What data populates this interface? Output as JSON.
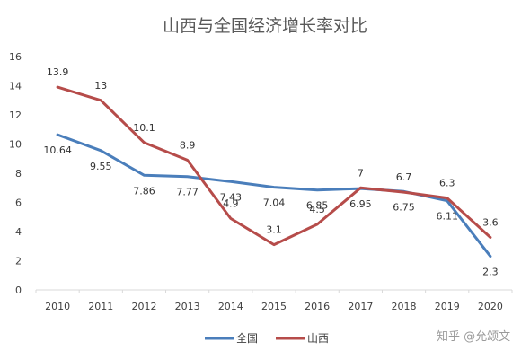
{
  "chart_data": {
    "type": "line",
    "title": "山西与全国经济增长率对比",
    "xlabel": "",
    "ylabel": "",
    "ylim": [
      0,
      16
    ],
    "yticks": [
      0,
      2,
      4,
      6,
      8,
      10,
      12,
      14,
      16
    ],
    "categories": [
      "2010",
      "2011",
      "2012",
      "2013",
      "2014",
      "2015",
      "2016",
      "2017",
      "2018",
      "2019",
      "2020"
    ],
    "series": [
      {
        "name": "全国",
        "color": "#4a7ebb",
        "values": [
          10.64,
          9.55,
          7.86,
          7.77,
          7.43,
          7.04,
          6.85,
          6.95,
          6.75,
          6.11,
          2.3
        ],
        "labels": [
          "10.64",
          "9.55",
          "7.86",
          "7.77",
          "7.43",
          "7.04",
          "6.85",
          "6.95",
          "6.75",
          "6.11",
          "2.3"
        ]
      },
      {
        "name": "山西",
        "color": "#b64c4a",
        "values": [
          13.9,
          13,
          10.1,
          8.9,
          4.9,
          3.1,
          4.5,
          7,
          6.7,
          6.3,
          3.6
        ],
        "labels": [
          "13.9",
          "13",
          "10.1",
          "8.9",
          "4.9",
          "3.1",
          "4.5",
          "7",
          "6.7",
          "6.3",
          "3.6"
        ]
      }
    ],
    "grid": false,
    "legend_position": "bottom"
  },
  "watermark": {
    "text": "知乎 @允颂文"
  }
}
